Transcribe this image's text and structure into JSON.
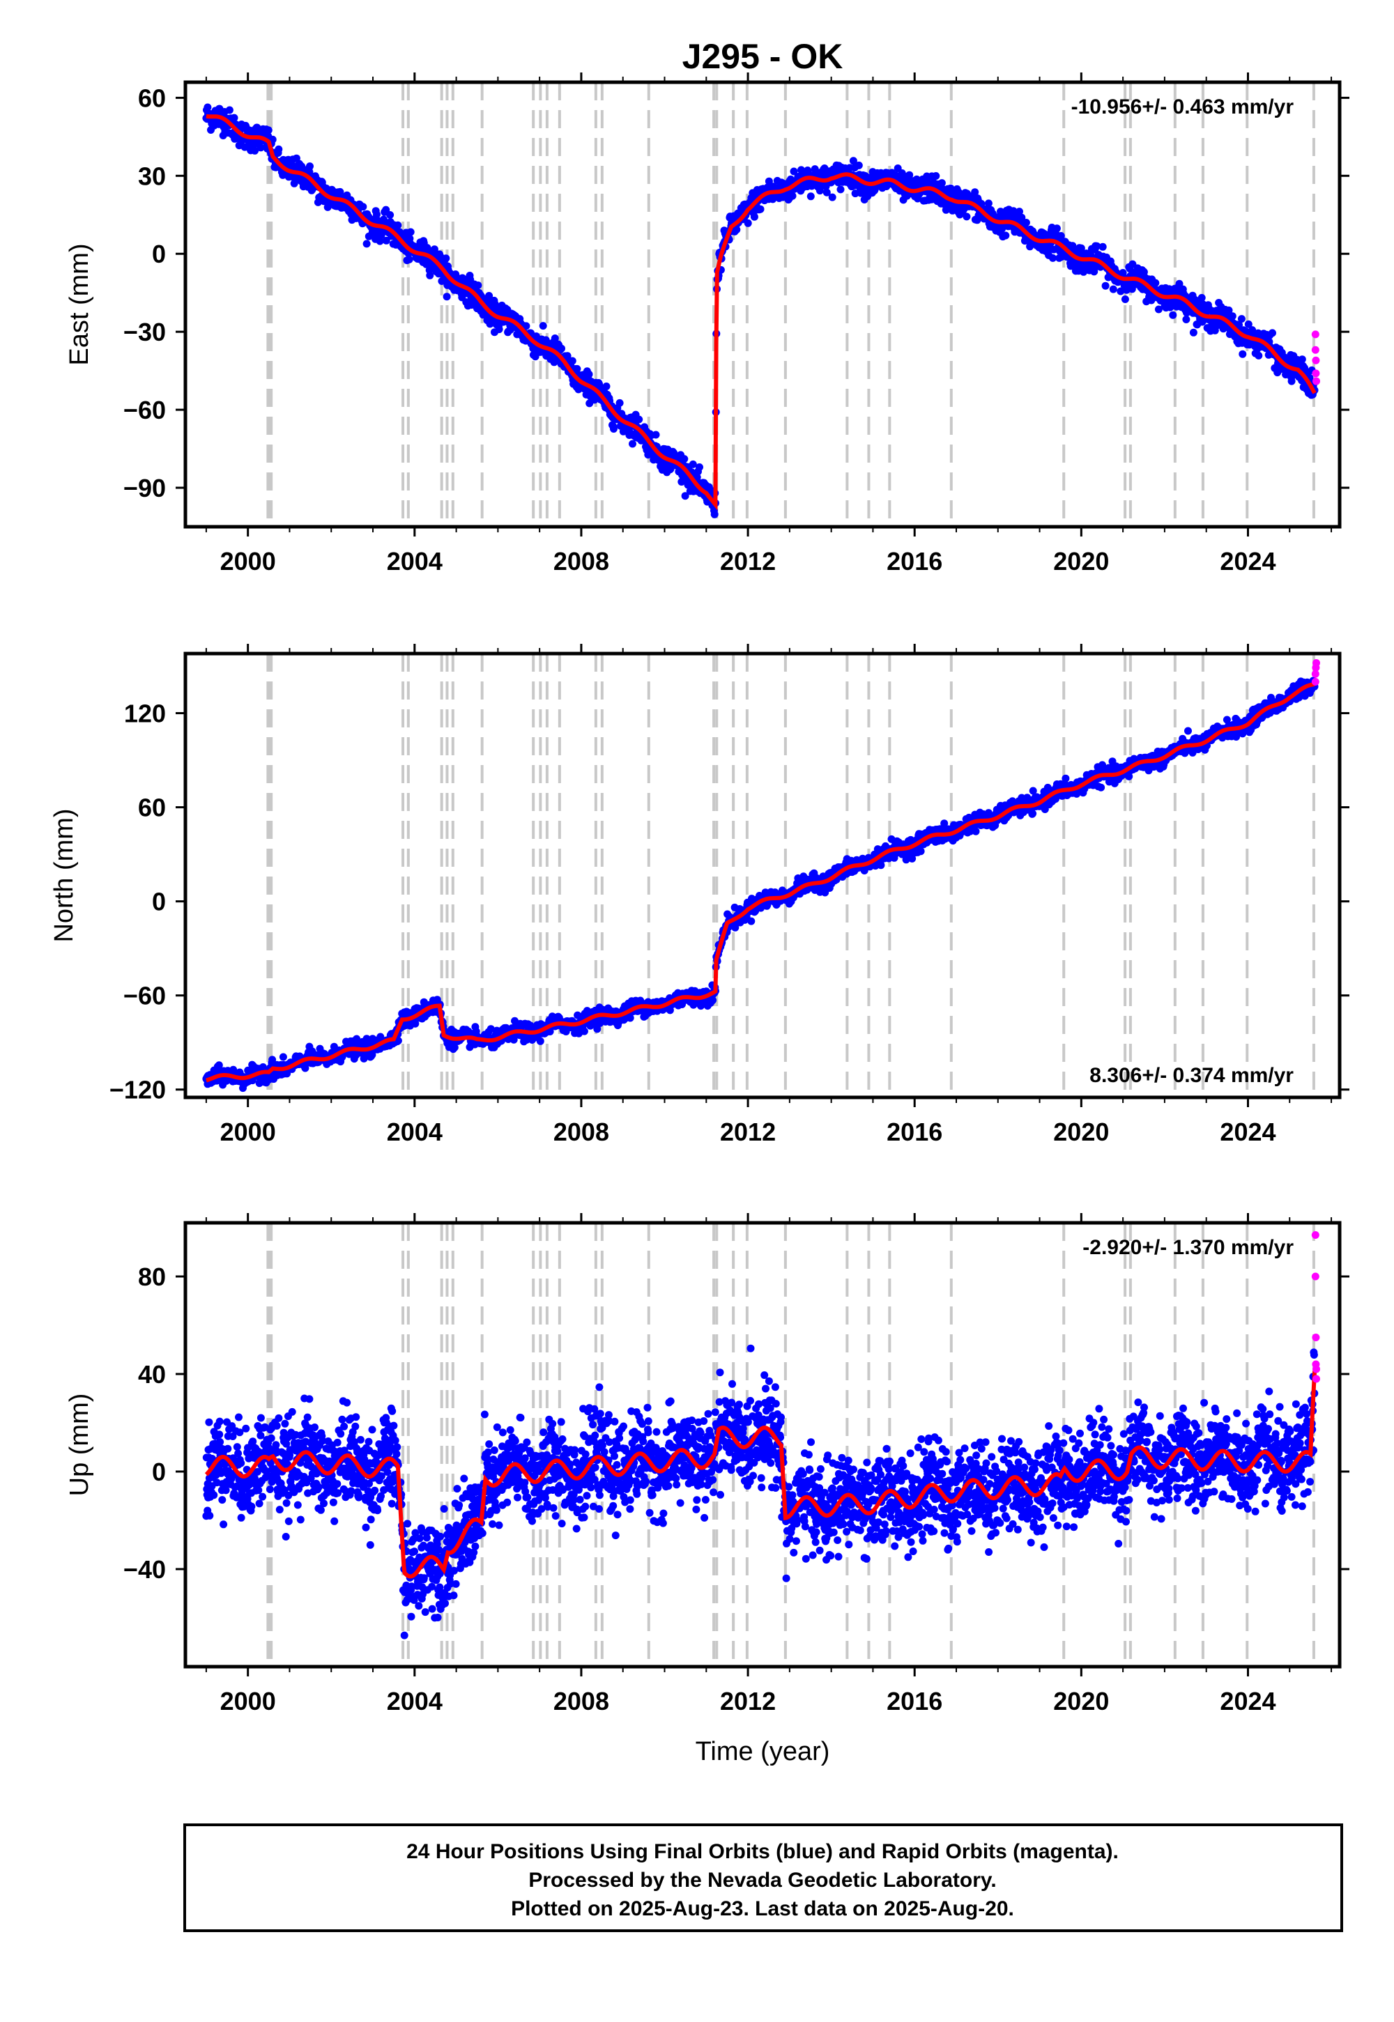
{
  "title": "J295 - OK",
  "colors": {
    "final_orbits": "#0000ff",
    "rapid_orbits": "#ff00ff",
    "model": "#ff0000",
    "event_lines": "#c8c8c8",
    "frame": "#000000"
  },
  "footer": {
    "line1": "24 Hour Positions Using Final Orbits (blue) and Rapid Orbits (magenta).",
    "line2": "Processed by the Nevada Geodetic Laboratory.",
    "line3": "Plotted on 2025-Aug-23. Last data on 2025-Aug-20."
  },
  "chart_data": [
    {
      "type": "scatter",
      "component": "East",
      "ylabel": "East (mm)",
      "xlabel": "",
      "rate_label": "-10.956+/- 0.463 mm/yr",
      "rate_position": "top-right",
      "xlim": [
        1998.5,
        2026.2
      ],
      "ylim": [
        -105,
        66
      ],
      "xticks": [
        2000,
        2004,
        2008,
        2012,
        2016,
        2020,
        2024
      ],
      "yticks": [
        -90,
        -60,
        -30,
        0,
        30,
        60
      ],
      "ytick_labels": [
        "−90",
        "−60",
        "−30",
        "0",
        "30",
        "60"
      ],
      "noise": 2.5,
      "seasonal": 1.3,
      "model_trend": [
        [
          1999.0,
          54
        ],
        [
          2000.5,
          42
        ],
        [
          2000.6,
          37
        ],
        [
          2003.7,
          5
        ],
        [
          2004.7,
          -6
        ],
        [
          2005.6,
          -19
        ],
        [
          2006.9,
          -33
        ],
        [
          2007.6,
          -42
        ],
        [
          2008.5,
          -56
        ],
        [
          2009.6,
          -72
        ],
        [
          2011.0,
          -91
        ],
        [
          2011.22,
          -97
        ],
        [
          2011.24,
          -35
        ],
        [
          2011.26,
          -8
        ],
        [
          2011.35,
          -2
        ],
        [
          2011.6,
          10
        ],
        [
          2012.0,
          18
        ],
        [
          2012.9,
          26
        ],
        [
          2014.0,
          30
        ],
        [
          2015.5,
          27
        ],
        [
          2016.9,
          22
        ],
        [
          2017.5,
          17
        ],
        [
          2019.0,
          6
        ],
        [
          2020.0,
          -1
        ],
        [
          2021.2,
          -10
        ],
        [
          2022.5,
          -19
        ],
        [
          2024.0,
          -31
        ],
        [
          2025.2,
          -45
        ],
        [
          2025.6,
          -54
        ]
      ],
      "model_steps": [
        2000.55,
        2003.8,
        2004.8,
        2011.23
      ],
      "rapid_points": [
        [
          2025.62,
          -31
        ],
        [
          2025.62,
          -37
        ],
        [
          2025.63,
          -41
        ],
        [
          2025.63,
          -46
        ],
        [
          2025.64,
          -49
        ]
      ]
    },
    {
      "type": "scatter",
      "component": "North",
      "ylabel": "North (mm)",
      "xlabel": "",
      "rate_label": "8.306+/- 0.374 mm/yr",
      "rate_position": "bottom-right",
      "xlim": [
        1998.5,
        2026.2
      ],
      "ylim": [
        -125,
        158
      ],
      "xticks": [
        2000,
        2004,
        2008,
        2012,
        2016,
        2020,
        2024
      ],
      "yticks": [
        -120,
        -60,
        0,
        60,
        120
      ],
      "ytick_labels": [
        "−120",
        "−60",
        "0",
        "60",
        "120"
      ],
      "noise": 2.6,
      "seasonal": 1.4,
      "model_trend": [
        [
          1999.0,
          -113
        ],
        [
          2000.5,
          -110
        ],
        [
          2000.6,
          -107
        ],
        [
          2003.5,
          -89
        ],
        [
          2003.7,
          -75
        ],
        [
          2004.6,
          -67
        ],
        [
          2004.7,
          -85
        ],
        [
          2005.5,
          -89
        ],
        [
          2007.5,
          -79
        ],
        [
          2009.5,
          -68
        ],
        [
          2011.22,
          -58
        ],
        [
          2011.24,
          -38
        ],
        [
          2011.5,
          -15
        ],
        [
          2012.0,
          -4
        ],
        [
          2013.5,
          10
        ],
        [
          2015.0,
          27
        ],
        [
          2016.0,
          37
        ],
        [
          2017.5,
          50
        ],
        [
          2019.0,
          64
        ],
        [
          2020.0,
          75
        ],
        [
          2021.5,
          88
        ],
        [
          2023.0,
          103
        ],
        [
          2024.0,
          114
        ],
        [
          2025.0,
          131
        ],
        [
          2025.6,
          138
        ]
      ],
      "model_steps": [
        2000.55,
        2003.7,
        2004.65,
        2011.23
      ],
      "rapid_points": [
        [
          2025.62,
          140
        ],
        [
          2025.62,
          145
        ],
        [
          2025.63,
          149
        ],
        [
          2025.64,
          152
        ]
      ]
    },
    {
      "type": "scatter",
      "component": "Up",
      "ylabel": "Up (mm)",
      "xlabel": "Time (year)",
      "rate_label": "-2.920+/- 1.370 mm/yr",
      "rate_position": "top-right",
      "xlim": [
        1998.5,
        2026.2
      ],
      "ylim": [
        -80,
        102
      ],
      "xticks": [
        2000,
        2004,
        2008,
        2012,
        2016,
        2020,
        2024
      ],
      "yticks": [
        -40,
        0,
        40,
        80
      ],
      "ytick_labels": [
        "−40",
        "0",
        "40",
        "80"
      ],
      "noise": 9,
      "seasonal": 4,
      "model_trend": [
        [
          1999.0,
          2
        ],
        [
          2000.5,
          2
        ],
        [
          2000.6,
          5
        ],
        [
          2003.6,
          1
        ],
        [
          2003.75,
          -39
        ],
        [
          2004.7,
          -39
        ],
        [
          2004.8,
          -30
        ],
        [
          2005.6,
          -22
        ],
        [
          2005.7,
          -2
        ],
        [
          2011.2,
          6
        ],
        [
          2011.3,
          14
        ],
        [
          2012.8,
          14
        ],
        [
          2012.9,
          -15
        ],
        [
          2015.0,
          -13
        ],
        [
          2017.0,
          -8
        ],
        [
          2019.5,
          -5
        ],
        [
          2019.6,
          0
        ],
        [
          2021.1,
          1
        ],
        [
          2021.2,
          6
        ],
        [
          2024.0,
          4
        ],
        [
          2025.5,
          4
        ],
        [
          2025.6,
          40
        ]
      ],
      "model_steps": [
        2000.55,
        2003.7,
        2004.75,
        2005.65,
        2011.25,
        2012.85,
        2021.15
      ],
      "rapid_points": [
        [
          2025.62,
          97
        ],
        [
          2025.62,
          80
        ],
        [
          2025.63,
          55
        ],
        [
          2025.63,
          44
        ],
        [
          2025.64,
          42
        ],
        [
          2025.64,
          38
        ]
      ]
    }
  ],
  "event_lines": [
    2000.48,
    2000.52,
    2000.56,
    2003.72,
    2003.85,
    2004.65,
    2004.78,
    2004.92,
    2005.62,
    2006.85,
    2007.02,
    2007.18,
    2007.48,
    2008.35,
    2008.5,
    2009.62,
    2011.18,
    2011.25,
    2011.65,
    2011.98,
    2012.9,
    2014.38,
    2014.9,
    2015.4,
    2016.88,
    2019.58,
    2021.05,
    2021.18,
    2022.25,
    2022.92,
    2023.98,
    2025.58
  ]
}
